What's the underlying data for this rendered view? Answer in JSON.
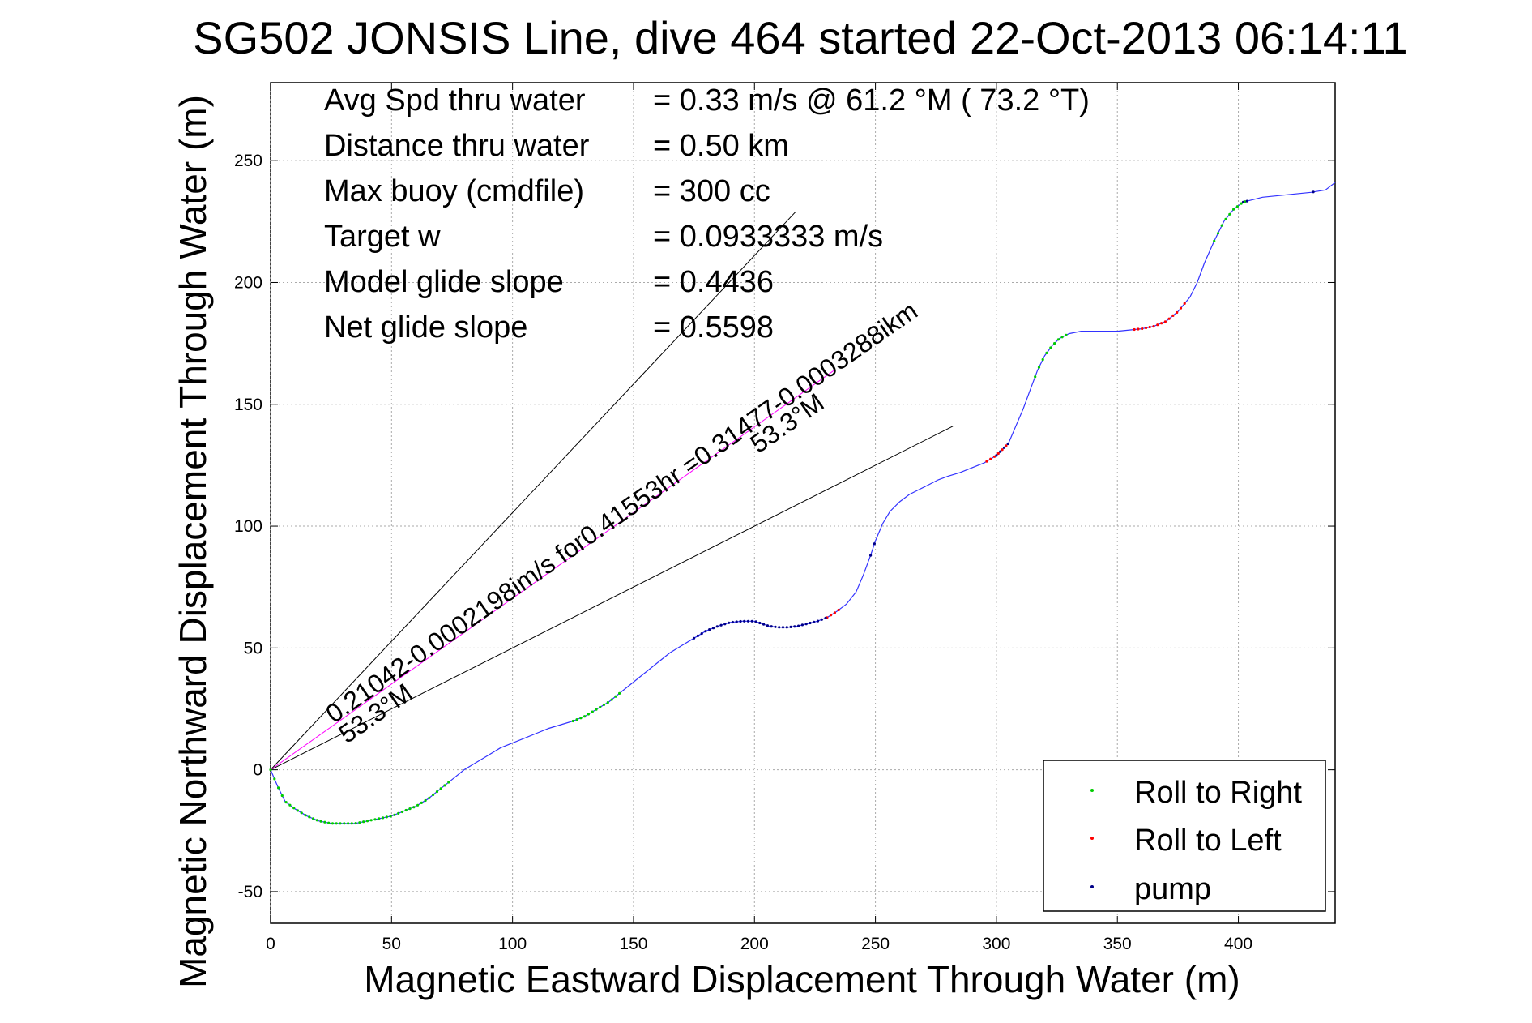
{
  "chart_data": {
    "type": "line",
    "title": "SG502 JONSIS Line, dive 464 started 22-Oct-2013 06:14:11",
    "xlabel": "Magnetic Eastward Displacement Through Water (m)",
    "ylabel": "Magnetic Northward Displacement Through Water (m)",
    "xlim": [
      0,
      440
    ],
    "ylim": [
      -63,
      282
    ],
    "xticks": [
      0,
      50,
      100,
      150,
      200,
      250,
      300,
      350,
      400
    ],
    "yticks": [
      -50,
      0,
      50,
      100,
      150,
      200,
      250
    ],
    "grid": true,
    "legend_position": "bottom-right",
    "colors": {
      "track": "#3333ff",
      "roll_right": "#00cc00",
      "roll_left": "#ff0000",
      "pump": "#000088",
      "current_line": "#ff00ff",
      "glide_lines": "#000000"
    },
    "stats": [
      {
        "label": "Avg Spd thru water",
        "value": "=  0.33 m/s @  61.2 °M ( 73.2 °T)"
      },
      {
        "label": "Distance thru water",
        "value": "=  0.50 km"
      },
      {
        "label": "Max buoy (cmdfile)",
        "value": "= 300 cc"
      },
      {
        "label": "Target w",
        "value": "= 0.0933333 m/s"
      },
      {
        "label": "Model glide slope",
        "value": "= 0.4436"
      },
      {
        "label": "Net glide slope",
        "value": "= 0.5598"
      }
    ],
    "annotations": {
      "current_text": "0.21042-0.0002198im/s for0.41553hr =0.31477-0.0003288ikm",
      "heading_near": "53.3°M",
      "heading_far": "53.3°M"
    },
    "reference_lines": [
      {
        "name": "glide-steep",
        "x": [
          0,
          217
        ],
        "y": [
          0,
          229
        ]
      },
      {
        "name": "glide-shallow",
        "x": [
          0,
          282
        ],
        "y": [
          0,
          141
        ]
      },
      {
        "name": "current",
        "x": [
          0,
          233
        ],
        "y": [
          0,
          164
        ]
      }
    ],
    "track": {
      "x": [
        0,
        3,
        6,
        10,
        15,
        20,
        25,
        30,
        35,
        40,
        45,
        50,
        55,
        60,
        65,
        70,
        75,
        80,
        85,
        90,
        95,
        100,
        105,
        110,
        115,
        120,
        125,
        130,
        135,
        140,
        145,
        150,
        155,
        160,
        165,
        170,
        175,
        180,
        185,
        190,
        195,
        200,
        203,
        206,
        210,
        214,
        218,
        222,
        226,
        230,
        234,
        238,
        242,
        245,
        248,
        250,
        253,
        256,
        260,
        264,
        268,
        272,
        276,
        280,
        285,
        290,
        295,
        300,
        305,
        308,
        311,
        314,
        317,
        320,
        323,
        326,
        330,
        335,
        340,
        345,
        350,
        355,
        360,
        365,
        370,
        375,
        380,
        383,
        386,
        390,
        394,
        398,
        402,
        406,
        410,
        420,
        430,
        436,
        440
      ],
      "y": [
        0,
        -7,
        -13,
        -16,
        -19,
        -21,
        -22,
        -22,
        -22,
        -21,
        -20,
        -19,
        -17,
        -15,
        -12,
        -8,
        -4,
        0,
        3,
        6,
        9,
        11,
        13,
        15,
        17,
        18.5,
        20,
        22,
        25,
        28,
        32,
        36,
        40,
        44,
        48,
        51,
        54,
        57,
        59,
        60.5,
        61,
        61,
        60,
        59,
        58.5,
        58.5,
        59,
        60,
        61,
        62.5,
        65,
        68,
        73,
        80,
        88,
        94,
        101,
        106,
        110,
        113,
        115,
        117,
        119,
        120.5,
        122,
        124,
        126,
        129,
        134,
        141,
        148,
        156,
        164,
        170,
        174,
        177,
        179,
        180,
        180,
        180,
        180,
        180.5,
        181,
        182,
        184,
        188,
        194,
        200,
        208,
        217,
        225,
        230,
        233,
        234,
        235,
        236,
        237,
        238,
        241
      ]
    },
    "markers": {
      "roll_right_ranges": [
        [
          0,
          75
        ],
        [
          125,
          145
        ],
        [
          316,
          330
        ],
        [
          390,
          403
        ]
      ],
      "roll_left_ranges": [
        [
          230,
          236
        ],
        [
          296,
          304
        ],
        [
          357,
          378
        ]
      ],
      "pump_ranges": [
        [
          175,
          230
        ],
        [
          248,
          250
        ],
        [
          300,
          306
        ],
        [
          402,
          404
        ],
        [
          431,
          432
        ]
      ]
    },
    "legend": [
      {
        "key": "roll_right",
        "label": "Roll to Right"
      },
      {
        "key": "roll_left",
        "label": "Roll to Left"
      },
      {
        "key": "pump",
        "label": "pump"
      }
    ]
  }
}
